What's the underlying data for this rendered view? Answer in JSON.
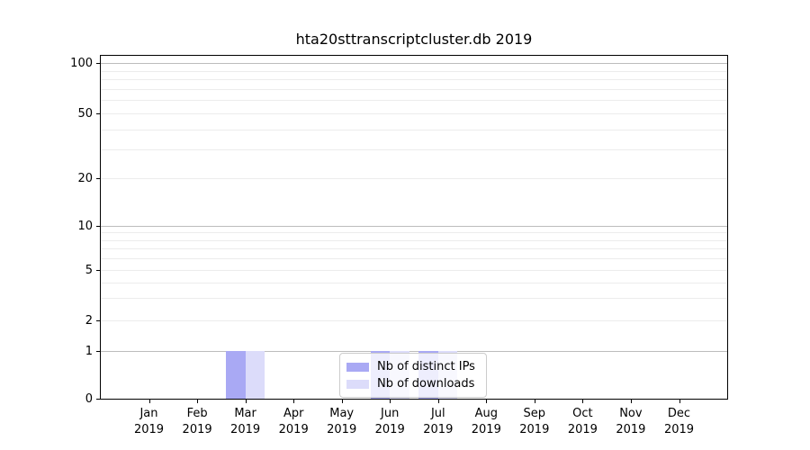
{
  "title": "hta20sttranscriptcluster.db 2019",
  "colors": {
    "distinct_ips_bar": "#a9a9f4",
    "downloads_bar": "#dcdcfa",
    "grid_major": "#bcbcbc",
    "grid_minor": "#ececec",
    "axis": "#000000",
    "legend_border": "#cccccc"
  },
  "legend": {
    "items": [
      {
        "label": "Nb of distinct IPs",
        "color": "#a9a9f4"
      },
      {
        "label": "Nb of downloads",
        "color": "#dcdcfa"
      }
    ]
  },
  "chart_data": {
    "type": "bar",
    "title": "hta20sttranscriptcluster.db 2019",
    "categories": [
      "Jan 2019",
      "Feb 2019",
      "Mar 2019",
      "Apr 2019",
      "May 2019",
      "Jun 2019",
      "Jul 2019",
      "Aug 2019",
      "Sep 2019",
      "Oct 2019",
      "Nov 2019",
      "Dec 2019"
    ],
    "series": [
      {
        "name": "Nb of distinct IPs",
        "color": "#a9a9f4",
        "values": [
          0,
          0,
          1,
          0,
          0,
          1,
          1,
          0,
          0,
          0,
          0,
          0
        ]
      },
      {
        "name": "Nb of downloads",
        "color": "#dcdcfa",
        "values": [
          0,
          0,
          1,
          0,
          0,
          1,
          1,
          0,
          0,
          0,
          0,
          0
        ]
      }
    ],
    "xlabel": "",
    "ylabel": "",
    "yscale": "symlog",
    "y_ticks": [
      0,
      1,
      2,
      5,
      10,
      20,
      50,
      100
    ],
    "y_major_gridlines": [
      1,
      10,
      100
    ],
    "y_minor_gridlines": [
      3,
      4,
      6,
      7,
      8,
      9,
      30,
      40,
      60,
      70,
      80,
      90
    ],
    "ylim": [
      0,
      110
    ],
    "grid": true,
    "legend_position": "lower center"
  }
}
